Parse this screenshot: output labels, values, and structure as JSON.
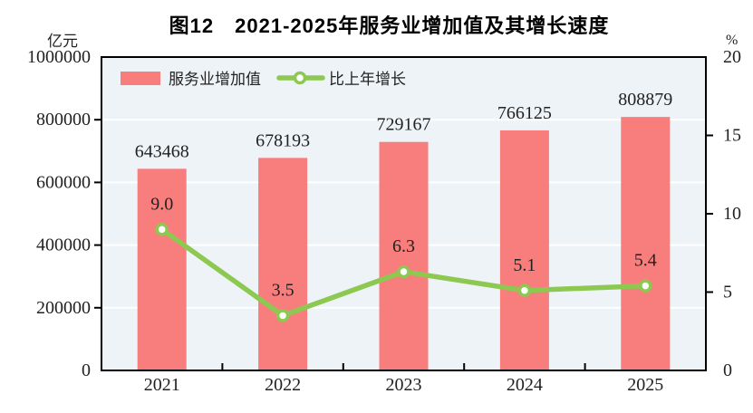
{
  "chart_data": {
    "type": "bar",
    "title": "图12　2021-2025年服务业增加值及其增长速度",
    "categories": [
      "2021",
      "2022",
      "2023",
      "2024",
      "2025"
    ],
    "series": [
      {
        "name": "服务业增加值",
        "type": "bar",
        "axis": "left",
        "color": "#f87d7d",
        "values": [
          643468,
          678193,
          729167,
          766125,
          808879
        ],
        "labels": [
          "643468",
          "678193",
          "729167",
          "766125",
          "808879"
        ]
      },
      {
        "name": "比上年增长",
        "type": "line",
        "axis": "right",
        "color": "#8dc850",
        "marker": "open-circle",
        "values": [
          9.0,
          3.5,
          6.3,
          5.1,
          5.4
        ],
        "labels": [
          "9.0",
          "3.5",
          "6.3",
          "5.1",
          "5.4"
        ]
      }
    ],
    "left_axis": {
      "unit": "亿元",
      "min": 0,
      "max": 1000000,
      "major_tick_step": 200000,
      "tick_labels": [
        "1000000",
        "800000",
        "600000",
        "400000",
        "200000",
        "0"
      ]
    },
    "right_axis": {
      "unit": "%",
      "min": 0,
      "max": 20,
      "major_tick_step": 5,
      "tick_labels": [
        "20",
        "15",
        "10",
        "5",
        "0"
      ]
    },
    "legend": {
      "position": "top-left-inside",
      "entries": [
        "服务业增加值",
        "比上年增长"
      ]
    },
    "style": {
      "plot_bg": "#eef3f7",
      "grid_color": "#ffffff",
      "axis_color": "#000000",
      "text_color": "#222222",
      "grid_on": true
    }
  }
}
